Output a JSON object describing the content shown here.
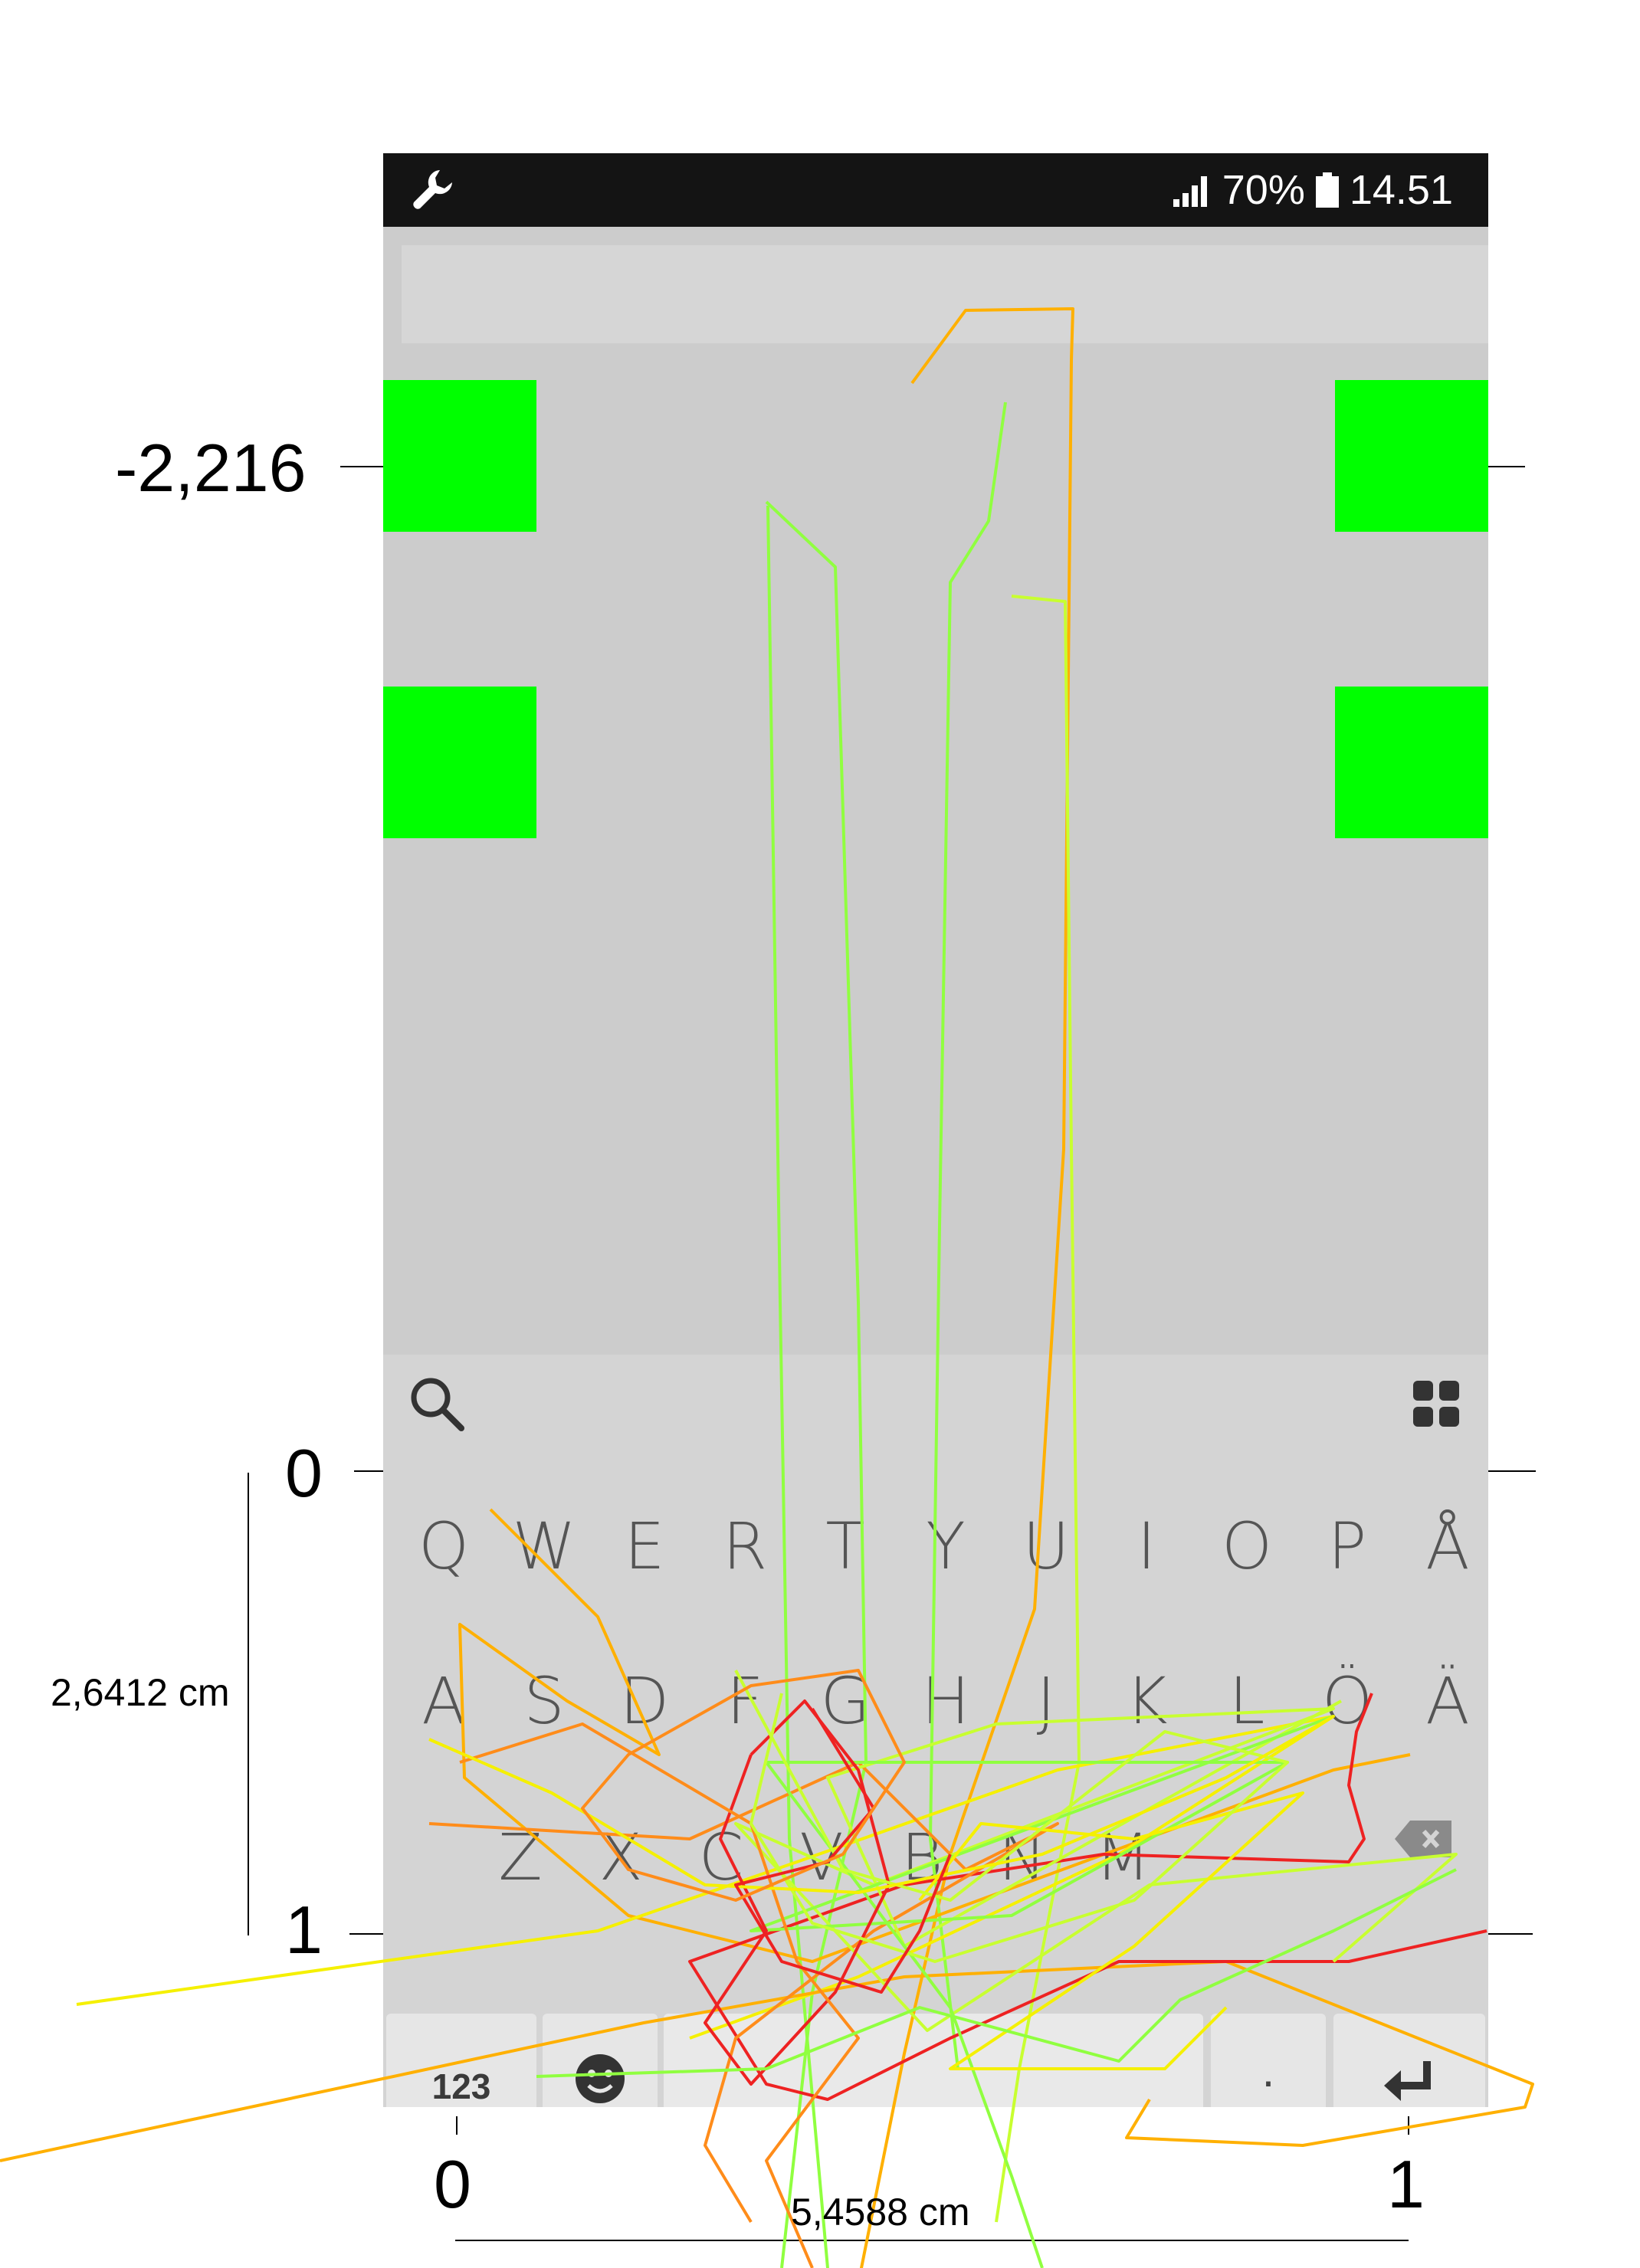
{
  "status_bar": {
    "left_icon": "wrench-icon",
    "signal_icon": "signal-icon",
    "battery_percent": "70%",
    "battery_icon": "battery-icon",
    "time": "14.51"
  },
  "colors": {
    "target": "#00ff00",
    "screen_bg": "#cccccc",
    "keyboard_bg": "#d4d4d4",
    "trace_red": "#ee2222",
    "trace_orange": "#ff8c1a",
    "trace_amber": "#ffb000",
    "trace_yellow": "#f5f000",
    "trace_lime": "#c8ff30",
    "trace_green": "#90ff40"
  },
  "keyboard": {
    "toolbar": {
      "search_icon": "search-icon",
      "menu_icon": "grid-icon"
    },
    "rows": [
      [
        "Q",
        "W",
        "E",
        "R",
        "T",
        "Y",
        "U",
        "I",
        "O",
        "P",
        "Å"
      ],
      [
        "A",
        "S",
        "D",
        "F",
        "G",
        "H",
        "J",
        "K",
        "L",
        "Ö",
        "Ä"
      ],
      [
        "",
        "Z",
        "X",
        "C",
        "V",
        "B",
        "N",
        "M"
      ]
    ],
    "bottom_row": {
      "numbers_label": "123",
      "emoji_icon": "emoji-icon",
      "space_label": "",
      "period_label": ".",
      "enter_icon": "enter-icon"
    },
    "backspace_icon": "backspace-icon"
  },
  "annotations": {
    "y_top_label": "-2,216",
    "y_zero": "0",
    "y_one": "1",
    "x_zero": "0",
    "x_one": "1",
    "height_label": "2,6412 cm",
    "width_label": "5,4588 cm"
  }
}
